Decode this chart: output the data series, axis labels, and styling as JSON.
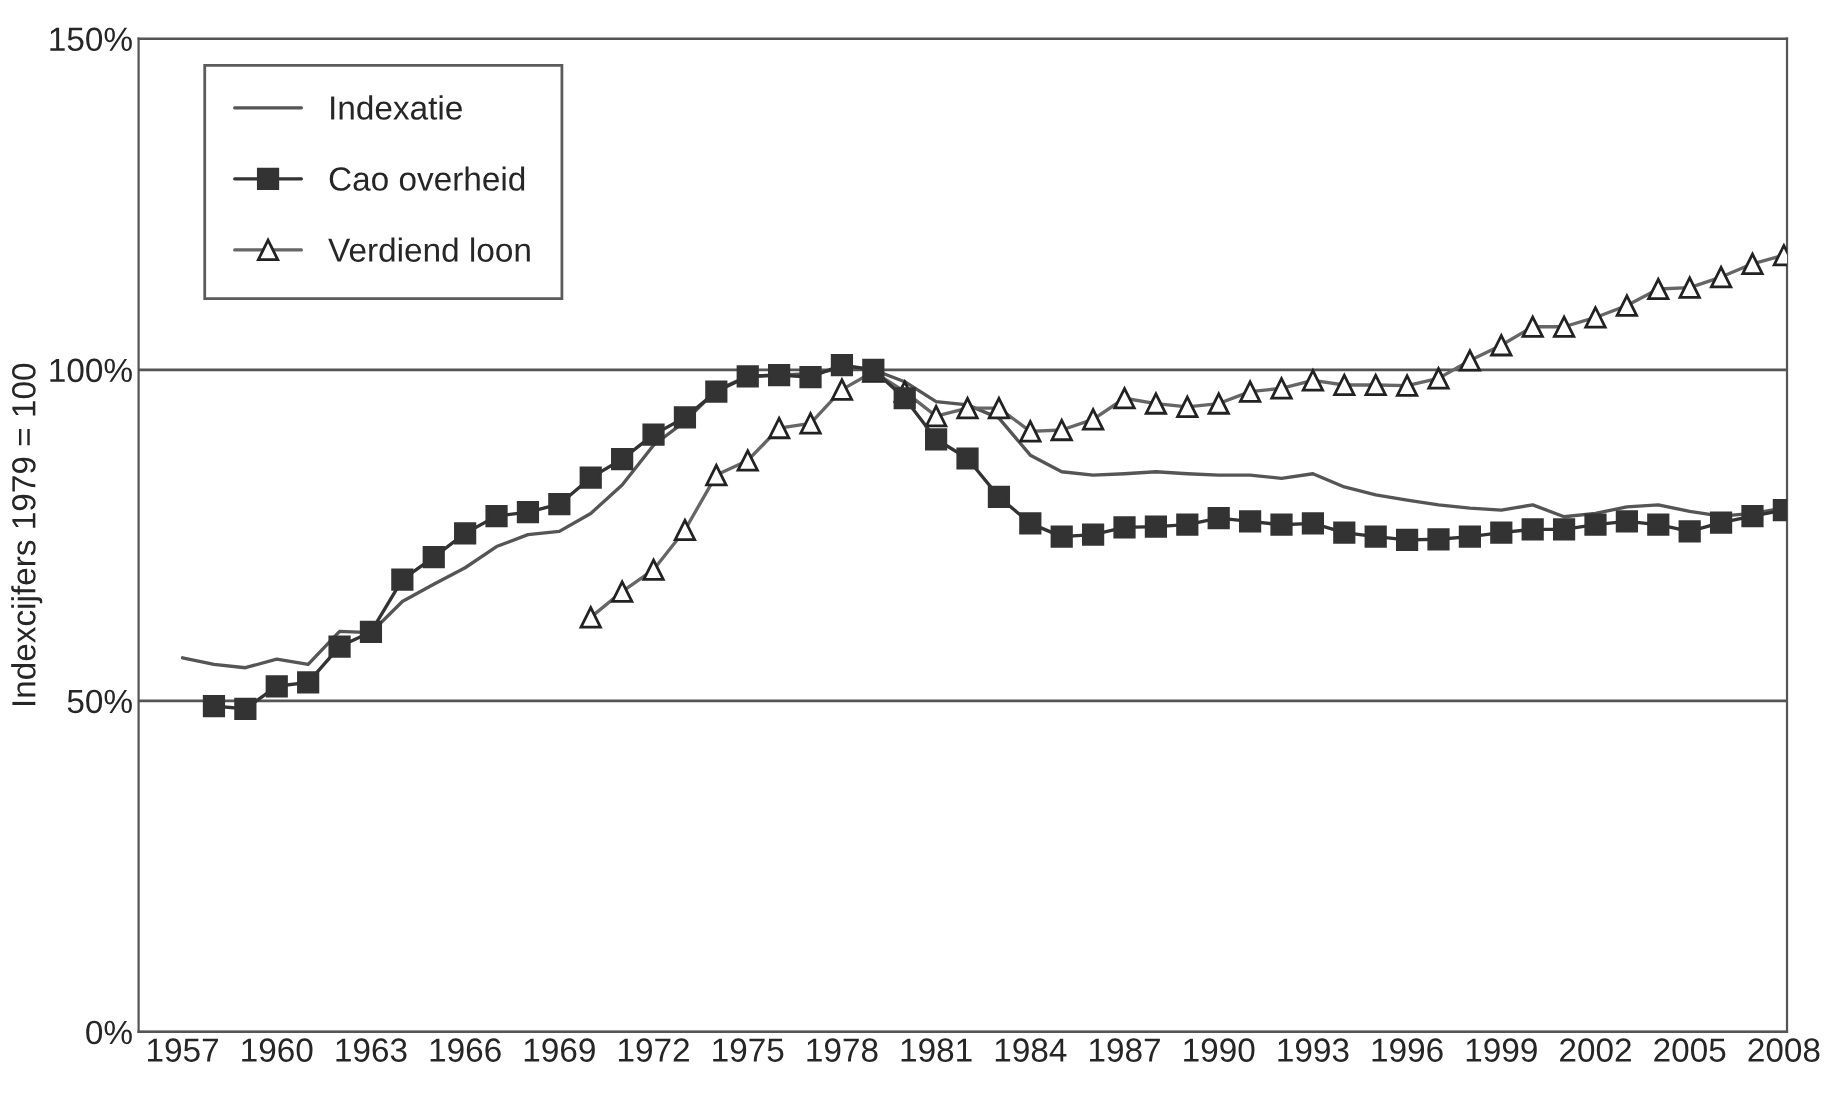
{
  "chart_data": {
    "type": "line",
    "ylabel": "Indexcijfers 1979 = 100",
    "xlim": [
      1955.6,
      2008.1
    ],
    "xticks": [
      1957,
      1960,
      1963,
      1966,
      1969,
      1972,
      1975,
      1978,
      1981,
      1984,
      1987,
      1990,
      1993,
      1996,
      1999,
      2002,
      2005,
      2008
    ],
    "ylim": [
      0,
      150
    ],
    "yticks": [
      {
        "value": 0,
        "label": "0%"
      },
      {
        "value": 50,
        "label": "50%"
      },
      {
        "value": 100,
        "label": "100%"
      },
      {
        "value": 150,
        "label": "150%"
      }
    ],
    "grid": "y",
    "legend": "top left",
    "series": [
      {
        "name": "Indexatie",
        "color": "#555555",
        "marker": "none",
        "x": [
          1957,
          1958,
          1959,
          1960,
          1961,
          1962,
          1963,
          1964,
          1965,
          1966,
          1967,
          1968,
          1969,
          1970,
          1971,
          1972,
          1973,
          1974,
          1975,
          1976,
          1977,
          1978,
          1979,
          1980,
          1981,
          1982,
          1983,
          1984,
          1985,
          1986,
          1987,
          1988,
          1989,
          1990,
          1991,
          1992,
          1993,
          1994,
          1995,
          1996,
          1997,
          1998,
          1999,
          2000,
          2001,
          2002,
          2003,
          2004,
          2005,
          2006,
          2007,
          2008
        ],
        "values": [
          56.5,
          55.5,
          55,
          56.3,
          55.5,
          60.5,
          60.3,
          65,
          67.6,
          70.1,
          73.3,
          75.1,
          75.6,
          78.3,
          82.6,
          88.6,
          92.2,
          96.9,
          99,
          99.2,
          99.4,
          100.2,
          100,
          98.2,
          95.2,
          94.7,
          92.7,
          87.1,
          84.6,
          84.1,
          84.3,
          84.6,
          84.3,
          84.1,
          84.1,
          83.6,
          84.3,
          82.3,
          81.1,
          80.3,
          79.6,
          79.1,
          78.8,
          79.6,
          77.8,
          78.3,
          79.3,
          79.6,
          78.6,
          77.9,
          78.3,
          79.1
        ]
      },
      {
        "name": "Cao overheid",
        "color": "#333333",
        "marker": "square",
        "x": [
          1958,
          1959,
          1960,
          1961,
          1962,
          1963,
          1964,
          1965,
          1966,
          1967,
          1968,
          1969,
          1970,
          1971,
          1972,
          1973,
          1974,
          1975,
          1976,
          1977,
          1978,
          1979,
          1980,
          1981,
          1982,
          1983,
          1984,
          1985,
          1986,
          1987,
          1988,
          1989,
          1990,
          1991,
          1992,
          1993,
          1994,
          1995,
          1996,
          1997,
          1998,
          1999,
          2000,
          2001,
          2002,
          2003,
          2004,
          2005,
          2006,
          2007,
          2008
        ],
        "values": [
          49.2,
          48.8,
          52.2,
          52.8,
          58.2,
          60.4,
          68.3,
          71.7,
          75.3,
          77.9,
          78.5,
          79.7,
          83.7,
          86.5,
          90.2,
          92.8,
          96.7,
          99,
          99.2,
          98.9,
          100.7,
          100,
          95.7,
          89.5,
          86.6,
          80.8,
          76.8,
          74.8,
          75.1,
          76.2,
          76.3,
          76.6,
          77.6,
          77.1,
          76.6,
          76.8,
          75.4,
          74.8,
          74.3,
          74.4,
          74.8,
          75.4,
          75.9,
          75.9,
          76.6,
          77.1,
          76.6,
          75.6,
          76.9,
          77.9,
          78.8
        ]
      },
      {
        "name": "Verdiend loon",
        "color": "#666666",
        "marker": "triangle",
        "x": [
          1970,
          1971,
          1972,
          1973,
          1974,
          1975,
          1976,
          1977,
          1978,
          1979,
          1980,
          1981,
          1982,
          1983,
          1984,
          1985,
          1986,
          1987,
          1988,
          1989,
          1990,
          1991,
          1992,
          1993,
          1994,
          1995,
          1996,
          1997,
          1998,
          1999,
          2000,
          2001,
          2002,
          2003,
          2004,
          2005,
          2006,
          2007,
          2008
        ],
        "values": [
          62.6,
          66.5,
          69.8,
          75.8,
          84.1,
          86.3,
          91.2,
          91.9,
          97,
          99.7,
          96.7,
          93,
          94.2,
          94.2,
          90.7,
          90.9,
          92.5,
          95.7,
          94.9,
          94.4,
          94.9,
          96.7,
          97.2,
          98.4,
          97.7,
          97.7,
          97.6,
          98.7,
          101.4,
          103.7,
          106.5,
          106.5,
          107.9,
          109.7,
          112.2,
          112.4,
          114,
          116,
          117.3
        ]
      }
    ]
  }
}
